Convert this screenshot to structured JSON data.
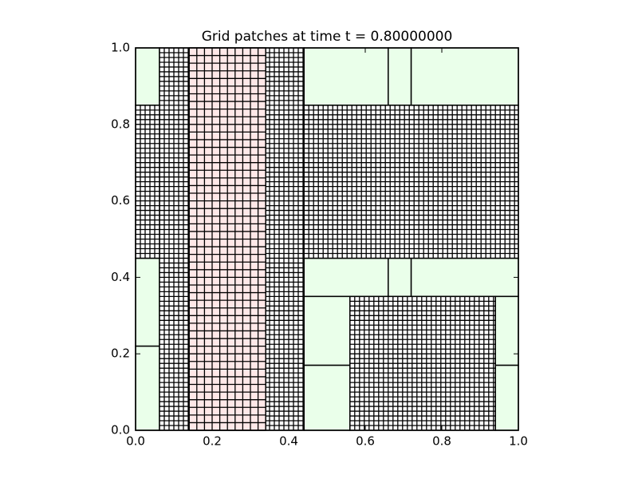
{
  "chart_data": {
    "type": "patches",
    "title": "Grid patches at time t =     0.80000000",
    "xlim": [
      0,
      1
    ],
    "ylim": [
      0,
      1
    ],
    "xticks": [
      {
        "value": 0,
        "label": "0.0"
      },
      {
        "value": 0.2,
        "label": "0.2"
      },
      {
        "value": 0.4,
        "label": "0.4"
      },
      {
        "value": 0.6,
        "label": "0.6"
      },
      {
        "value": 0.8,
        "label": "0.8"
      },
      {
        "value": 1,
        "label": "1.0"
      }
    ],
    "yticks": [
      {
        "value": 0,
        "label": "0.0"
      },
      {
        "value": 0.2,
        "label": "0.2"
      },
      {
        "value": 0.4,
        "label": "0.4"
      },
      {
        "value": 0.6,
        "label": "0.6"
      },
      {
        "value": 0.8,
        "label": "0.8"
      },
      {
        "value": 1,
        "label": "1.0"
      }
    ],
    "patches": [
      {
        "x": [
          0,
          0.0625
        ],
        "y": [
          0.85,
          1
        ],
        "color": "#eaffea",
        "dx": null
      },
      {
        "x": [
          0.44,
          0.66
        ],
        "y": [
          0.85,
          1
        ],
        "color": "#eaffea",
        "dx": null
      },
      {
        "x": [
          0.66,
          0.72
        ],
        "y": [
          0.85,
          1
        ],
        "color": "#eaffea",
        "dx": null
      },
      {
        "x": [
          0.72,
          1
        ],
        "y": [
          0.85,
          1
        ],
        "color": "#eaffea",
        "dx": null
      },
      {
        "x": [
          0,
          0.0625
        ],
        "y": [
          0.22,
          0.45
        ],
        "color": "#eaffea",
        "dx": null
      },
      {
        "x": [
          0,
          0.0625
        ],
        "y": [
          0,
          0.22
        ],
        "color": "#eaffea",
        "dx": null
      },
      {
        "x": [
          0.44,
          0.66
        ],
        "y": [
          0.35,
          0.45
        ],
        "color": "#eaffea",
        "dx": null
      },
      {
        "x": [
          0.66,
          0.72
        ],
        "y": [
          0.35,
          0.45
        ],
        "color": "#eaffea",
        "dx": null
      },
      {
        "x": [
          0.72,
          1
        ],
        "y": [
          0.35,
          0.45
        ],
        "color": "#eaffea",
        "dx": null
      },
      {
        "x": [
          0.44,
          0.56
        ],
        "y": [
          0.17,
          0.35
        ],
        "color": "#eaffea",
        "dx": null
      },
      {
        "x": [
          0.44,
          0.56
        ],
        "y": [
          0,
          0.17
        ],
        "color": "#eaffea",
        "dx": null
      },
      {
        "x": [
          0.94,
          1
        ],
        "y": [
          0.17,
          0.35
        ],
        "color": "#eaffea",
        "dx": null
      },
      {
        "x": [
          0.94,
          1
        ],
        "y": [
          0,
          0.17
        ],
        "color": "#eaffea",
        "dx": null
      },
      {
        "x": [
          0.0625,
          0.44
        ],
        "y": [
          0,
          1
        ],
        "color": "#ffffff",
        "dx": 0.0125
      },
      {
        "x": [
          0,
          0.0625
        ],
        "y": [
          0.45,
          0.85
        ],
        "color": "#ffffff",
        "dx": 0.0125
      },
      {
        "x": [
          0.44,
          1
        ],
        "y": [
          0.45,
          0.85
        ],
        "color": "#ffffff",
        "dx": 0.0125
      },
      {
        "x": [
          0.56,
          0.94
        ],
        "y": [
          0,
          0.35
        ],
        "color": "#ffffff",
        "dx": 0.0125
      },
      {
        "x": [
          0.14,
          0.34
        ],
        "y": [
          0,
          1
        ],
        "color": "#ffe8e8",
        "dx": 0.02
      }
    ]
  }
}
